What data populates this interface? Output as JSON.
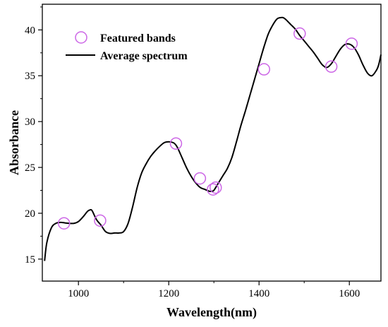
{
  "chart_data": {
    "type": "line",
    "xlabel": "Wavelength(nm)",
    "ylabel": "Absorbance",
    "xlim": [
      920,
      1670
    ],
    "ylim": [
      12.6,
      42.8
    ],
    "x_ticks": [
      1000,
      1200,
      1400,
      1600
    ],
    "y_ticks": [
      15,
      20,
      25,
      30,
      35,
      40
    ],
    "legend_position": "top-left",
    "grid": false,
    "series": [
      {
        "name": "Featured bands",
        "kind": "scatter",
        "color": "#cc66e6",
        "marker": "open-circle",
        "x": [
          968,
          1048,
          1216,
          1269,
          1298,
          1304,
          1411,
          1490,
          1560,
          1605
        ],
        "y": [
          18.9,
          19.2,
          27.6,
          23.8,
          22.6,
          22.8,
          35.7,
          39.6,
          36.0,
          38.5
        ]
      },
      {
        "name": "Average spectrum",
        "kind": "line",
        "color": "#000000",
        "x": [
          925,
          930,
          940,
          950,
          960,
          970,
          980,
          990,
          1000,
          1010,
          1020,
          1025,
          1030,
          1040,
          1050,
          1060,
          1070,
          1080,
          1090,
          1100,
          1110,
          1120,
          1130,
          1140,
          1150,
          1160,
          1170,
          1180,
          1190,
          1200,
          1210,
          1215,
          1220,
          1230,
          1240,
          1250,
          1260,
          1270,
          1280,
          1290,
          1295,
          1300,
          1310,
          1320,
          1330,
          1340,
          1350,
          1360,
          1370,
          1380,
          1390,
          1400,
          1410,
          1420,
          1430,
          1440,
          1450,
          1455,
          1460,
          1470,
          1480,
          1490,
          1500,
          1510,
          1520,
          1530,
          1540,
          1550,
          1560,
          1570,
          1580,
          1590,
          1600,
          1610,
          1620,
          1630,
          1640,
          1650,
          1660,
          1665,
          1670
        ],
        "y": [
          14.8,
          16.8,
          18.4,
          18.9,
          19.0,
          18.95,
          18.9,
          18.9,
          19.1,
          19.6,
          20.2,
          20.35,
          20.3,
          19.3,
          18.7,
          18.0,
          17.8,
          17.85,
          17.85,
          18.0,
          18.9,
          20.7,
          22.8,
          24.4,
          25.4,
          26.2,
          26.8,
          27.3,
          27.7,
          27.8,
          27.7,
          27.5,
          27.1,
          26.0,
          24.9,
          24.0,
          23.3,
          22.8,
          22.6,
          22.4,
          22.4,
          22.5,
          23.3,
          24.1,
          24.9,
          26.1,
          27.8,
          29.6,
          31.2,
          32.9,
          34.6,
          36.3,
          38.0,
          39.5,
          40.5,
          41.2,
          41.35,
          41.3,
          41.1,
          40.6,
          40.1,
          39.4,
          38.8,
          38.2,
          37.6,
          36.9,
          36.2,
          35.9,
          36.3,
          37.1,
          37.9,
          38.4,
          38.45,
          38.1,
          37.3,
          36.2,
          35.3,
          35.0,
          35.6,
          36.2,
          37.3
        ]
      }
    ]
  }
}
